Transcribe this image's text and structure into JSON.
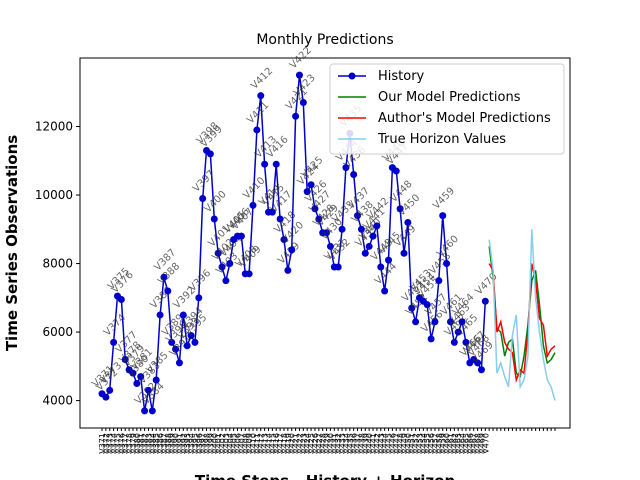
{
  "chart_data": {
    "type": "line",
    "title": "Monthly Predictions",
    "y_label": "Time Series Observations",
    "x_label": "Time Steps - History + Horizon",
    "categories": [
      "V371",
      "V372",
      "V373",
      "V374",
      "V375",
      "V376",
      "V377",
      "V378",
      "V379",
      "V380",
      "V381",
      "V382",
      "V383",
      "V384",
      "V385",
      "V386",
      "V387",
      "V388",
      "V389",
      "V390",
      "V391",
      "V392",
      "V393",
      "V394",
      "V395",
      "V396",
      "V397",
      "V398",
      "V399",
      "V400",
      "V401",
      "V402",
      "V403",
      "V404",
      "V405",
      "V406",
      "V407",
      "V408",
      "V409",
      "V410",
      "V411",
      "V412",
      "V413",
      "V414",
      "V415",
      "V416",
      "V417",
      "V418",
      "V419",
      "V420",
      "V421",
      "V422",
      "V423",
      "V424",
      "V425",
      "V426",
      "V427",
      "V428",
      "V429",
      "V430",
      "V431",
      "V432",
      "V433",
      "V434",
      "V435",
      "V436",
      "V437",
      "V438",
      "V439",
      "V440",
      "V441",
      "V442",
      "V443",
      "V444",
      "V445",
      "V446",
      "V447",
      "V448",
      "V449",
      "V450",
      "V451",
      "V452",
      "V453",
      "V454",
      "V455",
      "V456",
      "V457",
      "V458",
      "V459",
      "V460",
      "V461",
      "V462",
      "V463",
      "V464",
      "V465",
      "V466",
      "V467",
      "V468",
      "V469",
      "V470",
      null,
      null,
      null,
      null,
      null,
      null,
      null,
      null,
      null,
      null,
      null,
      null,
      null,
      null,
      null,
      null,
      null,
      null
    ],
    "series": [
      {
        "name": "History",
        "color": "#0000cc",
        "marker": true,
        "values": [
          4200,
          4100,
          4300,
          5700,
          7050,
          6950,
          5200,
          4900,
          4800,
          4500,
          4700,
          3700,
          4300,
          3700,
          4600,
          6500,
          7600,
          7200,
          5700,
          5500,
          5100,
          6500,
          5600,
          5900,
          5700,
          7000,
          9900,
          11300,
          11200,
          9300,
          8300,
          7900,
          7500,
          8000,
          8700,
          8800,
          8800,
          7700,
          7700,
          9700,
          11900,
          12900,
          10900,
          9500,
          9500,
          10900,
          9300,
          8700,
          7800,
          8400,
          12300,
          13500,
          12700,
          10100,
          10300,
          9600,
          9300,
          8900,
          8900,
          8500,
          7900,
          7900,
          9000,
          10800,
          11800,
          10600,
          9400,
          9000,
          8300,
          8500,
          8800,
          9100,
          7900,
          7200,
          8100,
          10800,
          10700,
          9600,
          8300,
          9200,
          6700,
          6300,
          7000,
          6900,
          6800,
          5800,
          6300,
          7500,
          9400,
          8000,
          6300,
          5700,
          6000,
          6300,
          5700,
          5100,
          5200,
          5100,
          4900,
          6900,
          null,
          null,
          null,
          null,
          null,
          null,
          null,
          null,
          null,
          null,
          null,
          null,
          null,
          null,
          null,
          null,
          null,
          null
        ]
      },
      {
        "name": "Our Model Predictions",
        "color": "#008000",
        "marker": false,
        "values": [
          null,
          null,
          null,
          null,
          null,
          null,
          null,
          null,
          null,
          null,
          null,
          null,
          null,
          null,
          null,
          null,
          null,
          null,
          null,
          null,
          null,
          null,
          null,
          null,
          null,
          null,
          null,
          null,
          null,
          null,
          null,
          null,
          null,
          null,
          null,
          null,
          null,
          null,
          null,
          null,
          null,
          null,
          null,
          null,
          null,
          null,
          null,
          null,
          null,
          null,
          null,
          null,
          null,
          null,
          null,
          null,
          null,
          null,
          null,
          null,
          null,
          null,
          null,
          null,
          null,
          null,
          null,
          null,
          null,
          null,
          null,
          null,
          null,
          null,
          null,
          null,
          null,
          null,
          null,
          null,
          null,
          null,
          null,
          null,
          null,
          null,
          null,
          null,
          null,
          null,
          null,
          null,
          null,
          null,
          null,
          null,
          null,
          null,
          null,
          null,
          8500,
          7600,
          6100,
          6000,
          5300,
          5700,
          5800,
          4800,
          4700,
          5300,
          6200,
          7500,
          7800,
          6800,
          5600,
          5100,
          5200,
          5400
        ]
      },
      {
        "name": "Author's Model Predictions",
        "color": "#ff0000",
        "marker": false,
        "values": [
          null,
          null,
          null,
          null,
          null,
          null,
          null,
          null,
          null,
          null,
          null,
          null,
          null,
          null,
          null,
          null,
          null,
          null,
          null,
          null,
          null,
          null,
          null,
          null,
          null,
          null,
          null,
          null,
          null,
          null,
          null,
          null,
          null,
          null,
          null,
          null,
          null,
          null,
          null,
          null,
          null,
          null,
          null,
          null,
          null,
          null,
          null,
          null,
          null,
          null,
          null,
          null,
          null,
          null,
          null,
          null,
          null,
          null,
          null,
          null,
          null,
          null,
          null,
          null,
          null,
          null,
          null,
          null,
          null,
          null,
          null,
          null,
          null,
          null,
          null,
          null,
          null,
          null,
          null,
          null,
          null,
          null,
          null,
          null,
          null,
          null,
          null,
          null,
          null,
          null,
          null,
          null,
          null,
          null,
          null,
          null,
          null,
          null,
          null,
          null,
          8000,
          7800,
          6000,
          6300,
          5700,
          5500,
          5400,
          4600,
          4900,
          4800,
          6000,
          8000,
          7500,
          6400,
          6200,
          5300,
          5500,
          5600
        ]
      },
      {
        "name": "True Horizon Values",
        "color": "#87ceeb",
        "marker": false,
        "values": [
          null,
          null,
          null,
          null,
          null,
          null,
          null,
          null,
          null,
          null,
          null,
          null,
          null,
          null,
          null,
          null,
          null,
          null,
          null,
          null,
          null,
          null,
          null,
          null,
          null,
          null,
          null,
          null,
          null,
          null,
          null,
          null,
          null,
          null,
          null,
          null,
          null,
          null,
          null,
          null,
          null,
          null,
          null,
          null,
          null,
          null,
          null,
          null,
          null,
          null,
          null,
          null,
          null,
          null,
          null,
          null,
          null,
          null,
          null,
          null,
          null,
          null,
          null,
          null,
          null,
          null,
          null,
          null,
          null,
          null,
          null,
          null,
          null,
          null,
          null,
          null,
          null,
          null,
          null,
          null,
          null,
          null,
          null,
          null,
          null,
          null,
          null,
          null,
          null,
          null,
          null,
          null,
          null,
          null,
          null,
          null,
          null,
          null,
          null,
          null,
          8700,
          7800,
          4800,
          5100,
          4700,
          4400,
          5900,
          6500,
          4400,
          4600,
          5300,
          9000,
          7000,
          6000,
          5200,
          4600,
          4400,
          4000
        ]
      }
    ],
    "ylim": [
      3200,
      14000
    ],
    "yticks": [
      4000,
      6000,
      8000,
      10000,
      12000
    ],
    "legend": "upper right"
  }
}
